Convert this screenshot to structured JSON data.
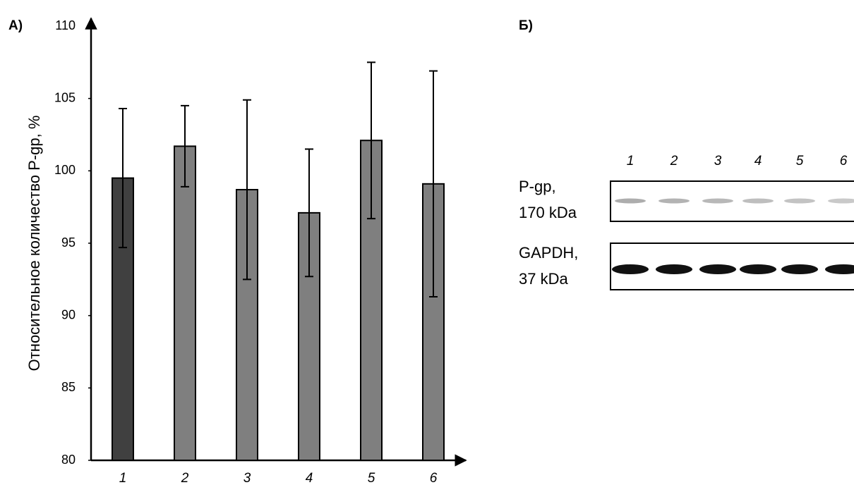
{
  "chart_data": {
    "type": "bar",
    "panel_label": "А)",
    "y_label": "Относительное количество P-gp, %",
    "categories": [
      "1",
      "2",
      "3",
      "4",
      "5",
      "6"
    ],
    "values": [
      99.5,
      101.7,
      98.7,
      97.1,
      102.1,
      99.1
    ],
    "errors": [
      4.8,
      2.8,
      6.2,
      4.4,
      5.4,
      7.8
    ],
    "colors": [
      "#404040",
      "#7f7f7f",
      "#7f7f7f",
      "#7f7f7f",
      "#7f7f7f",
      "#7f7f7f"
    ],
    "ylim": [
      80,
      110
    ],
    "yticks": [
      80,
      85,
      90,
      95,
      100,
      105,
      110
    ],
    "grid": false
  },
  "blot": {
    "panel_label": "Б)",
    "lanes": [
      "1",
      "2",
      "3",
      "4",
      "5",
      "6"
    ],
    "rows": [
      {
        "name": "P-gp,",
        "size": "170 kDa"
      },
      {
        "name": "GAPDH,",
        "size": "37 kDa"
      }
    ]
  }
}
